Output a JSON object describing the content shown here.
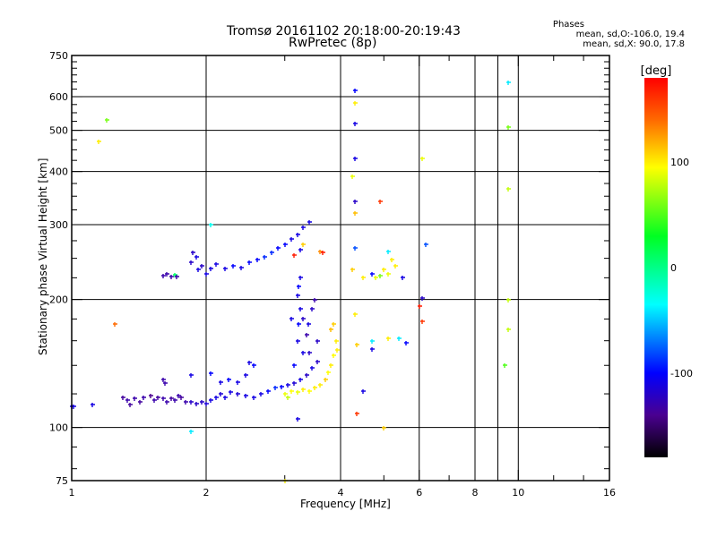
{
  "chart_data": {
    "type": "scatter",
    "title": "Tromsø 20161102 20:18:00-20:19:43",
    "subtitle": "RwPretec (8p)",
    "phase_info": {
      "heading": "Phases",
      "line_o": "mean, sd,O:-106.0, 19.4",
      "line_x": "mean, sd,X:  90.0, 17.8"
    },
    "xlabel": "Frequency [MHz]",
    "ylabel": "Stationary phase Virtual Height [km]",
    "xscale": "log2",
    "yscale": "log",
    "xlim": [
      1,
      16
    ],
    "ylim": [
      75,
      750
    ],
    "xticks": [
      1,
      2,
      4,
      6,
      8,
      10,
      16
    ],
    "xtick_labels": [
      "1",
      "2",
      "4",
      "6",
      "8",
      "10",
      "16"
    ],
    "xgrid": [
      2,
      4,
      6,
      8,
      9,
      10
    ],
    "xminor": [
      3,
      5,
      7,
      9,
      12,
      14
    ],
    "yticks": [
      75,
      100,
      200,
      300,
      400,
      500,
      600,
      750
    ],
    "ytick_labels": [
      "75",
      "100",
      "200",
      "300",
      "400",
      "500",
      "600",
      "750"
    ],
    "ygrid": [
      100,
      200,
      300,
      400,
      500,
      600
    ],
    "yminor": [
      80,
      90,
      120,
      140,
      160,
      180,
      225,
      250,
      275,
      325,
      350,
      375,
      425,
      450,
      475,
      525,
      550,
      575,
      625,
      650,
      675,
      700,
      725
    ],
    "grid": true,
    "colorbar": {
      "label": "[deg]",
      "range": [
        -180,
        180
      ],
      "ticks": [
        100,
        0,
        -100
      ],
      "tick_labels": [
        "100",
        "0",
        "-100"
      ],
      "stops": [
        {
          "v": 180,
          "color": "#ff0000"
        },
        {
          "v": 140,
          "color": "#ff6a00"
        },
        {
          "v": 95,
          "color": "#ffff00"
        },
        {
          "v": 30,
          "color": "#00ff22"
        },
        {
          "v": -35,
          "color": "#00ffff"
        },
        {
          "v": -100,
          "color": "#0000ff"
        },
        {
          "v": -140,
          "color": "#4a0090"
        },
        {
          "v": -180,
          "color": "#000000"
        }
      ]
    },
    "point_fields": [
      "frequency_MHz",
      "height_km",
      "phase_deg"
    ],
    "points": [
      [
        1.0,
        112,
        -110
      ],
      [
        1.01,
        112,
        -110
      ],
      [
        1.11,
        113,
        -110
      ],
      [
        1.3,
        118,
        -135
      ],
      [
        1.33,
        116,
        -130
      ],
      [
        1.35,
        113,
        -135
      ],
      [
        1.38,
        117,
        -130
      ],
      [
        1.42,
        115,
        -135
      ],
      [
        1.45,
        118,
        -130
      ],
      [
        1.5,
        119,
        -140
      ],
      [
        1.53,
        116,
        -130
      ],
      [
        1.56,
        118,
        -135
      ],
      [
        1.6,
        117,
        -130
      ],
      [
        1.63,
        115,
        -130
      ],
      [
        1.67,
        117,
        -135
      ],
      [
        1.7,
        116,
        -130
      ],
      [
        1.73,
        119,
        -130
      ],
      [
        1.76,
        118,
        -135
      ],
      [
        1.8,
        115,
        -130
      ],
      [
        1.85,
        115,
        -120
      ],
      [
        1.9,
        114,
        -120
      ],
      [
        1.95,
        115,
        -120
      ],
      [
        2.0,
        114,
        -115
      ],
      [
        2.05,
        116,
        -110
      ],
      [
        2.1,
        118,
        -110
      ],
      [
        2.15,
        120,
        -115
      ],
      [
        2.2,
        118,
        -110
      ],
      [
        2.27,
        121,
        -110
      ],
      [
        2.35,
        120,
        -115
      ],
      [
        2.45,
        119,
        -110
      ],
      [
        2.55,
        118,
        -110
      ],
      [
        2.65,
        120,
        -110
      ],
      [
        2.75,
        122,
        -100
      ],
      [
        2.85,
        124,
        -90
      ],
      [
        2.95,
        125,
        -100
      ],
      [
        3.05,
        126,
        -110
      ],
      [
        3.15,
        127,
        -115
      ],
      [
        3.25,
        130,
        -110
      ],
      [
        3.35,
        133,
        -120
      ],
      [
        3.45,
        138,
        -110
      ],
      [
        3.55,
        143,
        -120
      ],
      [
        1.6,
        130,
        -130
      ],
      [
        1.62,
        127,
        -130
      ],
      [
        1.85,
        133,
        -110
      ],
      [
        2.05,
        134,
        -100
      ],
      [
        2.15,
        128,
        -110
      ],
      [
        2.25,
        130,
        -100
      ],
      [
        2.35,
        128,
        -110
      ],
      [
        2.45,
        133,
        -110
      ],
      [
        2.5,
        142,
        -110
      ],
      [
        2.55,
        140,
        -100
      ],
      [
        3.2,
        160,
        -110
      ],
      [
        3.22,
        175,
        -100
      ],
      [
        3.25,
        190,
        -110
      ],
      [
        3.2,
        205,
        -110
      ],
      [
        3.22,
        215,
        -100
      ],
      [
        3.25,
        225,
        -110
      ],
      [
        3.3,
        180,
        -120
      ],
      [
        3.35,
        165,
        -130
      ],
      [
        3.4,
        150,
        -120
      ],
      [
        3.38,
        175,
        -110
      ],
      [
        3.45,
        190,
        -120
      ],
      [
        3.5,
        200,
        -130
      ],
      [
        3.3,
        150,
        -110
      ],
      [
        3.15,
        140,
        -100
      ],
      [
        3.1,
        180,
        -110
      ],
      [
        3.55,
        160,
        -120
      ],
      [
        1.6,
        228,
        -130
      ],
      [
        1.63,
        230,
        -130
      ],
      [
        1.67,
        227,
        -130
      ],
      [
        1.7,
        229,
        10
      ],
      [
        1.72,
        227,
        -130
      ],
      [
        1.85,
        245,
        -120
      ],
      [
        1.87,
        258,
        -120
      ],
      [
        1.9,
        252,
        -110
      ],
      [
        1.92,
        235,
        -110
      ],
      [
        1.95,
        240,
        -120
      ],
      [
        2.0,
        230,
        -110
      ],
      [
        2.05,
        237,
        -110
      ],
      [
        2.1,
        242,
        -110
      ],
      [
        2.2,
        237,
        -110
      ],
      [
        2.3,
        240,
        -100
      ],
      [
        2.4,
        238,
        -110
      ],
      [
        2.5,
        245,
        -100
      ],
      [
        2.6,
        248,
        -100
      ],
      [
        2.7,
        252,
        -90
      ],
      [
        2.8,
        258,
        -90
      ],
      [
        2.9,
        265,
        -100
      ],
      [
        3.0,
        270,
        -100
      ],
      [
        3.1,
        278,
        -110
      ],
      [
        3.2,
        285,
        -110
      ],
      [
        3.3,
        295,
        -110
      ],
      [
        3.4,
        305,
        -110
      ],
      [
        3.25,
        262,
        -110
      ],
      [
        3.15,
        255,
        170
      ],
      [
        3.3,
        270,
        110
      ],
      [
        3.0,
        120,
        90
      ],
      [
        3.05,
        118,
        80
      ],
      [
        3.1,
        122,
        95
      ],
      [
        3.2,
        121,
        90
      ],
      [
        3.3,
        123,
        100
      ],
      [
        3.4,
        122,
        95
      ],
      [
        3.5,
        124,
        100
      ],
      [
        3.6,
        126,
        100
      ],
      [
        3.7,
        130,
        110
      ],
      [
        3.75,
        135,
        95
      ],
      [
        3.8,
        140,
        100
      ],
      [
        3.85,
        148,
        95
      ],
      [
        3.9,
        160,
        100
      ],
      [
        3.85,
        175,
        110
      ],
      [
        3.8,
        170,
        115
      ],
      [
        3.92,
        152,
        100
      ],
      [
        3.6,
        260,
        130
      ],
      [
        3.65,
        258,
        170
      ],
      [
        4.3,
        620,
        -100
      ],
      [
        4.3,
        580,
        100
      ],
      [
        4.3,
        520,
        -110
      ],
      [
        4.3,
        430,
        -110
      ],
      [
        4.25,
        390,
        90
      ],
      [
        4.3,
        340,
        -120
      ],
      [
        4.3,
        320,
        115
      ],
      [
        4.3,
        265,
        -80
      ],
      [
        4.3,
        185,
        100
      ],
      [
        4.35,
        157,
        110
      ],
      [
        4.35,
        108,
        160
      ],
      [
        4.5,
        122,
        -110
      ],
      [
        4.25,
        235,
        110
      ],
      [
        4.5,
        225,
        100
      ],
      [
        4.7,
        230,
        -100
      ],
      [
        4.8,
        225,
        90
      ],
      [
        4.9,
        228,
        60
      ],
      [
        5.0,
        235,
        100
      ],
      [
        5.1,
        230,
        90
      ],
      [
        5.2,
        248,
        100
      ],
      [
        5.3,
        240,
        100
      ],
      [
        5.5,
        225,
        -110
      ],
      [
        4.9,
        340,
        160
      ],
      [
        5.1,
        260,
        -40
      ],
      [
        4.7,
        160,
        -40
      ],
      [
        4.7,
        153,
        -110
      ],
      [
        5.1,
        162,
        100
      ],
      [
        5.4,
        162,
        -40
      ],
      [
        5.6,
        158,
        -100
      ],
      [
        6.0,
        193,
        170
      ],
      [
        6.1,
        202,
        -120
      ],
      [
        6.1,
        178,
        160
      ],
      [
        6.2,
        270,
        -80
      ],
      [
        6.1,
        430,
        90
      ],
      [
        5.0,
        100,
        110
      ],
      [
        3.0,
        75,
        100
      ],
      [
        3.2,
        105,
        -110
      ],
      [
        1.15,
        470,
        100
      ],
      [
        1.2,
        530,
        60
      ],
      [
        1.25,
        175,
        140
      ],
      [
        1.85,
        98,
        -40
      ],
      [
        2.05,
        300,
        -30
      ],
      [
        9.5,
        650,
        -40
      ],
      [
        9.5,
        510,
        60
      ],
      [
        9.5,
        365,
        80
      ],
      [
        9.5,
        200,
        80
      ],
      [
        9.5,
        170,
        80
      ],
      [
        9.3,
        140,
        50
      ]
    ]
  }
}
